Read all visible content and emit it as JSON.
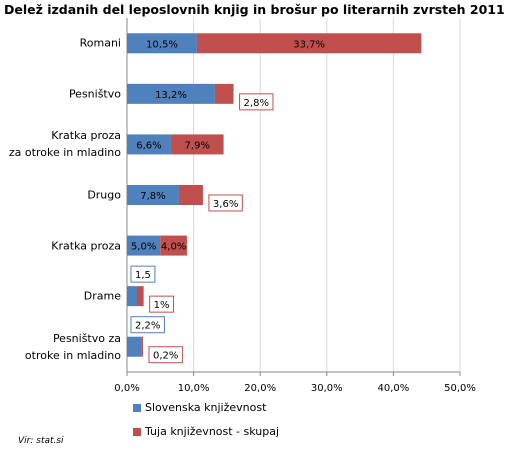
{
  "chart_data": {
    "type": "bar",
    "orientation": "horizontal",
    "stacked": true,
    "title": "Delež izdanih del leposlovnih knjig in brošur po literarnih zvrsteh 2011",
    "categories": [
      "Romani",
      "Pesništvo",
      "Kratka proza\nza otroke in mladino",
      "Drugo",
      "Kratka proza",
      "Drame",
      "Pesništvo za\notroke in mladino"
    ],
    "series": [
      {
        "name": "Slovenska književnost",
        "color": "#4f81bd",
        "values": [
          10.5,
          13.2,
          6.6,
          7.8,
          5.0,
          1.5,
          2.2
        ],
        "value_labels": [
          "10,5%",
          "13,2%",
          "6,6%",
          "7,8%",
          "5,0%",
          "1,5",
          "2,2%"
        ]
      },
      {
        "name": "Tuja književnost - skupaj",
        "color": "#c0504d",
        "values": [
          33.7,
          2.8,
          7.9,
          3.6,
          4.0,
          1,
          0.2
        ],
        "value_labels": [
          "33,7%",
          "2,8%",
          "7,9%",
          "3,6%",
          "4,0%",
          "1%",
          "0,2%"
        ]
      }
    ],
    "xlim": [
      0,
      50
    ],
    "xticks": [
      {
        "value": 0,
        "label": "0,0%"
      },
      {
        "value": 10,
        "label": "10,0%"
      },
      {
        "value": 20,
        "label": "20,0%"
      },
      {
        "value": 30,
        "label": "30,0%"
      },
      {
        "value": 40,
        "label": "40,0%"
      },
      {
        "value": 50,
        "label": "50,0%"
      }
    ],
    "grid": true,
    "legend_position": "bottom",
    "source": "Vir: stat.si"
  }
}
